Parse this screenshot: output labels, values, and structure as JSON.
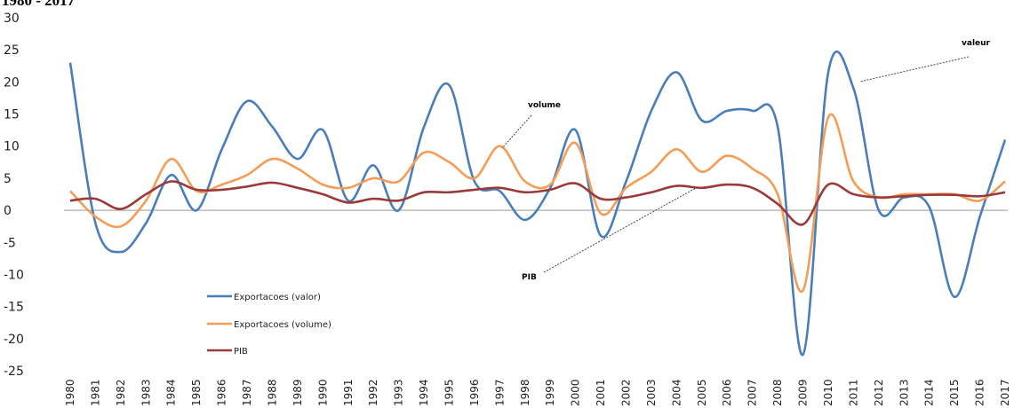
{
  "title": "1980 - 2017",
  "chart_data": {
    "type": "line",
    "title": "1980 - 2017",
    "xlabel": "",
    "ylabel": "",
    "ylim": [
      -25,
      30
    ],
    "yticks": [
      30,
      25,
      20,
      15,
      10,
      5,
      0,
      -5,
      -10,
      -15,
      -20,
      -25
    ],
    "categories": [
      "1980",
      "1981",
      "1982",
      "1983",
      "1984",
      "1985",
      "1986",
      "1987",
      "1988",
      "1989",
      "1990",
      "1991",
      "1992",
      "1993",
      "1994",
      "1995",
      "1996",
      "1997",
      "1998",
      "1999",
      "2000",
      "2001",
      "2002",
      "2003",
      "2004",
      "2005",
      "2006",
      "2007",
      "2008",
      "2009",
      "2010",
      "2011",
      "2012",
      "2013",
      "2014",
      "2015",
      "2016",
      "2017"
    ],
    "series": [
      {
        "name": "Exportacoes (valor)",
        "color": "#4a7ebb",
        "values": [
          23,
          -2,
          -6.5,
          -2,
          5.5,
          0,
          9.5,
          17,
          13,
          8,
          12.5,
          1.5,
          7,
          0,
          13,
          19.5,
          4.5,
          3,
          -1.5,
          3.5,
          12.5,
          -4,
          4.5,
          15.5,
          21.5,
          14,
          15.5,
          15.5,
          13,
          -22.5,
          21.5,
          19,
          0,
          2,
          0.5,
          -13.5,
          -1,
          11
        ]
      },
      {
        "name": "Exportacoes (volume)",
        "color": "#f59d56",
        "values": [
          3,
          -1,
          -2.5,
          1.5,
          8,
          3,
          4,
          5.5,
          8,
          6.5,
          4,
          3.5,
          5,
          4.5,
          9,
          7.5,
          5,
          10,
          4.5,
          4,
          10.5,
          -0.5,
          3.5,
          6,
          9.5,
          6,
          8.5,
          6.5,
          2.5,
          -12.5,
          14.5,
          4.5,
          2,
          2.5,
          2.5,
          2.5,
          1.5,
          4.5
        ]
      },
      {
        "name": "PIB",
        "color": "#9b3a3a",
        "values": [
          1.5,
          1.8,
          0.2,
          2.5,
          4.5,
          3.2,
          3.2,
          3.7,
          4.3,
          3.5,
          2.5,
          1.2,
          1.8,
          1.5,
          2.8,
          2.8,
          3.2,
          3.5,
          2.8,
          3.2,
          4.2,
          1.8,
          2,
          2.8,
          3.8,
          3.5,
          4,
          3.5,
          1,
          -2.2,
          4,
          2.5,
          2,
          2.2,
          2.4,
          2.4,
          2.2,
          2.8
        ]
      }
    ],
    "legend_position": "bottom-left",
    "annotations": [
      {
        "text": "valeur",
        "series": "Exportacoes (valor)"
      },
      {
        "text": "volume",
        "series": "Exportacoes (volume)"
      },
      {
        "text": "PIB",
        "series": "PIB"
      }
    ],
    "grid": false
  }
}
